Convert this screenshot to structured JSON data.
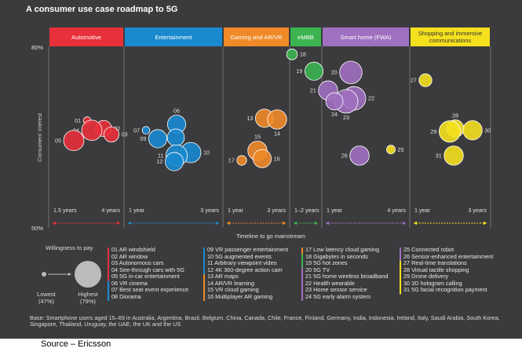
{
  "title": "A consumer use case roadmap to 5G",
  "source": "Source – Ericsson",
  "base_note": "Base: Smartphone users aged 15–69 in Australia, Argentina, Brazil, Belgium, China, Canada, Chile, France, Finland, Germany, India, Indonesia, Ireland, Italy, Saudi Arabia, South Korea, Singapore, Thailand, Uruguay, the UAE, the UK and the US",
  "colors": {
    "background": "#3b3b3d",
    "automotive": "#e8303a",
    "entertainment": "#1a8ad0",
    "gaming": "#f08a28",
    "embb": "#3cb450",
    "smarthome": "#a070c0",
    "shopping": "#f5e01e"
  },
  "willingness": {
    "title": "Willingness to pay",
    "lowest_label": "Lowest",
    "lowest_value": "(47%)",
    "highest_label": "Highest",
    "highest_value": "(79%)"
  },
  "chart_data": {
    "type": "scatter",
    "ylabel": "Consumers' interest",
    "xlabel": "Timeline to go mainstream",
    "ylim": [
      50,
      80
    ],
    "y_ticks": [
      "80%",
      "50%"
    ],
    "categories": [
      {
        "name": "Automotive",
        "color": "#e8303a",
        "range": [
          "1.5 years",
          "4 years"
        ]
      },
      {
        "name": "Entertainment",
        "color": "#1a8ad0",
        "range": [
          "1 year",
          "3 years"
        ]
      },
      {
        "name": "Gaming and AR/VR",
        "color": "#f08a28",
        "range": [
          "1 year",
          "3 years"
        ]
      },
      {
        "name": "eMBB",
        "color": "#3cb450",
        "range": [
          "1–2 years",
          ""
        ]
      },
      {
        "name": "Smart home (FWA)",
        "color": "#a070c0",
        "range": [
          "1 year",
          "4 years"
        ]
      },
      {
        "name": "Shopping and immersive communications",
        "color": "#f5e01e",
        "range": [
          "1 year",
          "3 years"
        ]
      }
    ],
    "points": [
      {
        "id": "01",
        "cat": 0,
        "interest": 67.8,
        "pay": 0.1
      },
      {
        "id": "02",
        "cat": 0,
        "interest": 66.5,
        "pay": 0.5
      },
      {
        "id": "03",
        "cat": 0,
        "interest": 65.5,
        "pay": 0.45
      },
      {
        "id": "04",
        "cat": 0,
        "interest": 66.2,
        "pay": 0.7
      },
      {
        "id": "05",
        "cat": 0,
        "interest": 64.5,
        "pay": 0.7
      },
      {
        "id": "06",
        "cat": 1,
        "interest": 67.2,
        "pay": 0.6
      },
      {
        "id": "07",
        "cat": 1,
        "interest": 66.2,
        "pay": 0.1
      },
      {
        "id": "08",
        "cat": 1,
        "interest": 65.0,
        "pay": 0.55
      },
      {
        "id": "09",
        "cat": 1,
        "interest": 64.8,
        "pay": 0.6
      },
      {
        "id": "10",
        "cat": 1,
        "interest": 62.5,
        "pay": 0.7
      },
      {
        "id": "11",
        "cat": 1,
        "interest": 62.0,
        "pay": 0.75
      },
      {
        "id": "12",
        "cat": 1,
        "interest": 61.0,
        "pay": 0.6
      },
      {
        "id": "13",
        "cat": 2,
        "interest": 68.2,
        "pay": 0.6
      },
      {
        "id": "14",
        "cat": 2,
        "interest": 68.0,
        "pay": 0.65
      },
      {
        "id": "15",
        "cat": 2,
        "interest": 62.8,
        "pay": 0.65
      },
      {
        "id": "16",
        "cat": 2,
        "interest": 61.5,
        "pay": 0.6
      },
      {
        "id": "17",
        "cat": 2,
        "interest": 61.2,
        "pay": 0.2
      },
      {
        "id": "18",
        "cat": 3,
        "interest": 78.8,
        "pay": 0.25
      },
      {
        "id": "19",
        "cat": 3,
        "interest": 76.0,
        "pay": 0.6
      },
      {
        "id": "20",
        "cat": 4,
        "interest": 75.8,
        "pay": 0.8
      },
      {
        "id": "21",
        "cat": 4,
        "interest": 72.8,
        "pay": 0.65
      },
      {
        "id": "22",
        "cat": 4,
        "interest": 71.5,
        "pay": 0.85
      },
      {
        "id": "23",
        "cat": 4,
        "interest": 71.0,
        "pay": 0.85
      },
      {
        "id": "24",
        "cat": 4,
        "interest": 71.0,
        "pay": 0.55
      },
      {
        "id": "25",
        "cat": 5,
        "interest": 63.0,
        "pay": 0.15
      },
      {
        "id": "26",
        "cat": 4,
        "interest": 62.0,
        "pay": 0.65
      },
      {
        "id": "27",
        "cat": 5,
        "interest": 74.5,
        "pay": 0.35
      },
      {
        "id": "28",
        "cat": 5,
        "interest": 66.5,
        "pay": 0.55
      },
      {
        "id": "29",
        "cat": 5,
        "interest": 66.0,
        "pay": 0.75
      },
      {
        "id": "30",
        "cat": 5,
        "interest": 66.2,
        "pay": 0.65
      },
      {
        "id": "31",
        "cat": 5,
        "interest": 62.0,
        "pay": 0.65
      }
    ]
  },
  "legend_columns": [
    [
      "01 AR windshield",
      "02 AR window",
      "03 Autonomous cars",
      "04 See-through cars with 5G",
      "05 5G in-car entertainment",
      "06 VR cinema",
      "07 Best seat event experience",
      "08 Diorama"
    ],
    [
      "09 VR passenger entertainment",
      "10 5G augmented events",
      "11 Arbitrary viewpoint video",
      "12 4K 360-degree action cam",
      "13 AR maps",
      "14 AR/VR learning",
      "15 VR cloud gaming",
      "16 Multiplayer AR gaming"
    ],
    [
      "17 Low latency cloud gaming",
      "18 Gigabytes in seconds",
      "19 5G hot zones",
      "20 5G TV",
      "21 5G home wireless broadband",
      "22 Health wearable",
      "23 Home sensor service",
      "24 5G early alarm system"
    ],
    [
      "25 Connected robot",
      "26 Sensor-enhanced entertainment",
      "27 Real-time translations",
      "28 Virtual tactile shopping",
      "29 Drone delivery",
      "30 3D hologram calling",
      "31 5G facial recognition payment"
    ]
  ]
}
